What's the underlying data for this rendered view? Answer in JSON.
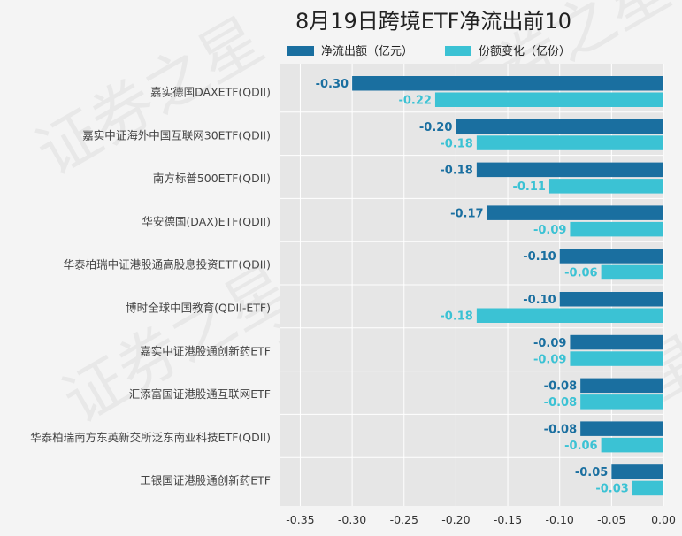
{
  "chart_data": {
    "type": "bar",
    "orientation": "horizontal",
    "title": "8月19日跨境ETF净流出前10",
    "categories": [
      "嘉实德国DAXETF(QDII)",
      "嘉实中证海外中国互联网30ETF(QDII)",
      "南方标普500ETF(QDII)",
      "华安德国(DAX)ETF(QDII)",
      "华泰柏瑞中证港股通高股息投资ETF(QDII)",
      "博时全球中国教育(QDII-ETF)",
      "嘉实中证港股通创新药ETF",
      "汇添富国证港股通互联网ETF",
      "华泰柏瑞南方东英新交所泛东南亚科技ETF(QDII)",
      "工银国证港股通创新药ETF"
    ],
    "series": [
      {
        "name": "净流出额（亿元）",
        "color": "#1a6fa0",
        "label_color": "#1a6fa0",
        "values": [
          -0.3,
          -0.2,
          -0.18,
          -0.17,
          -0.1,
          -0.1,
          -0.09,
          -0.08,
          -0.08,
          -0.05
        ],
        "labels": [
          "-0.30",
          "-0.20",
          "-0.18",
          "-0.17",
          "-0.10",
          "-0.10",
          "-0.09",
          "-0.08",
          "-0.08",
          "-0.05"
        ]
      },
      {
        "name": "份额变化（亿份）",
        "color": "#3bc2d4",
        "label_color": "#3bc2d4",
        "values": [
          -0.22,
          -0.18,
          -0.11,
          -0.09,
          -0.06,
          -0.18,
          -0.09,
          -0.08,
          -0.06,
          -0.03
        ],
        "labels": [
          "-0.22",
          "-0.18",
          "-0.11",
          "-0.09",
          "-0.06",
          "-0.18",
          "-0.09",
          "-0.08",
          "-0.06",
          "-0.03"
        ]
      }
    ],
    "xlim": [
      -0.37,
      0.0
    ],
    "xticks": [
      -0.35,
      -0.3,
      -0.25,
      -0.2,
      -0.15,
      -0.1,
      -0.05,
      0.0
    ],
    "xtick_labels": [
      "-0.35",
      "-0.30",
      "-0.25",
      "-0.20",
      "-0.15",
      "-0.10",
      "-0.05",
      "0.00"
    ],
    "grid": true,
    "legend": "top",
    "plot_background": "#e6e6e6"
  },
  "watermark": "证券之星"
}
